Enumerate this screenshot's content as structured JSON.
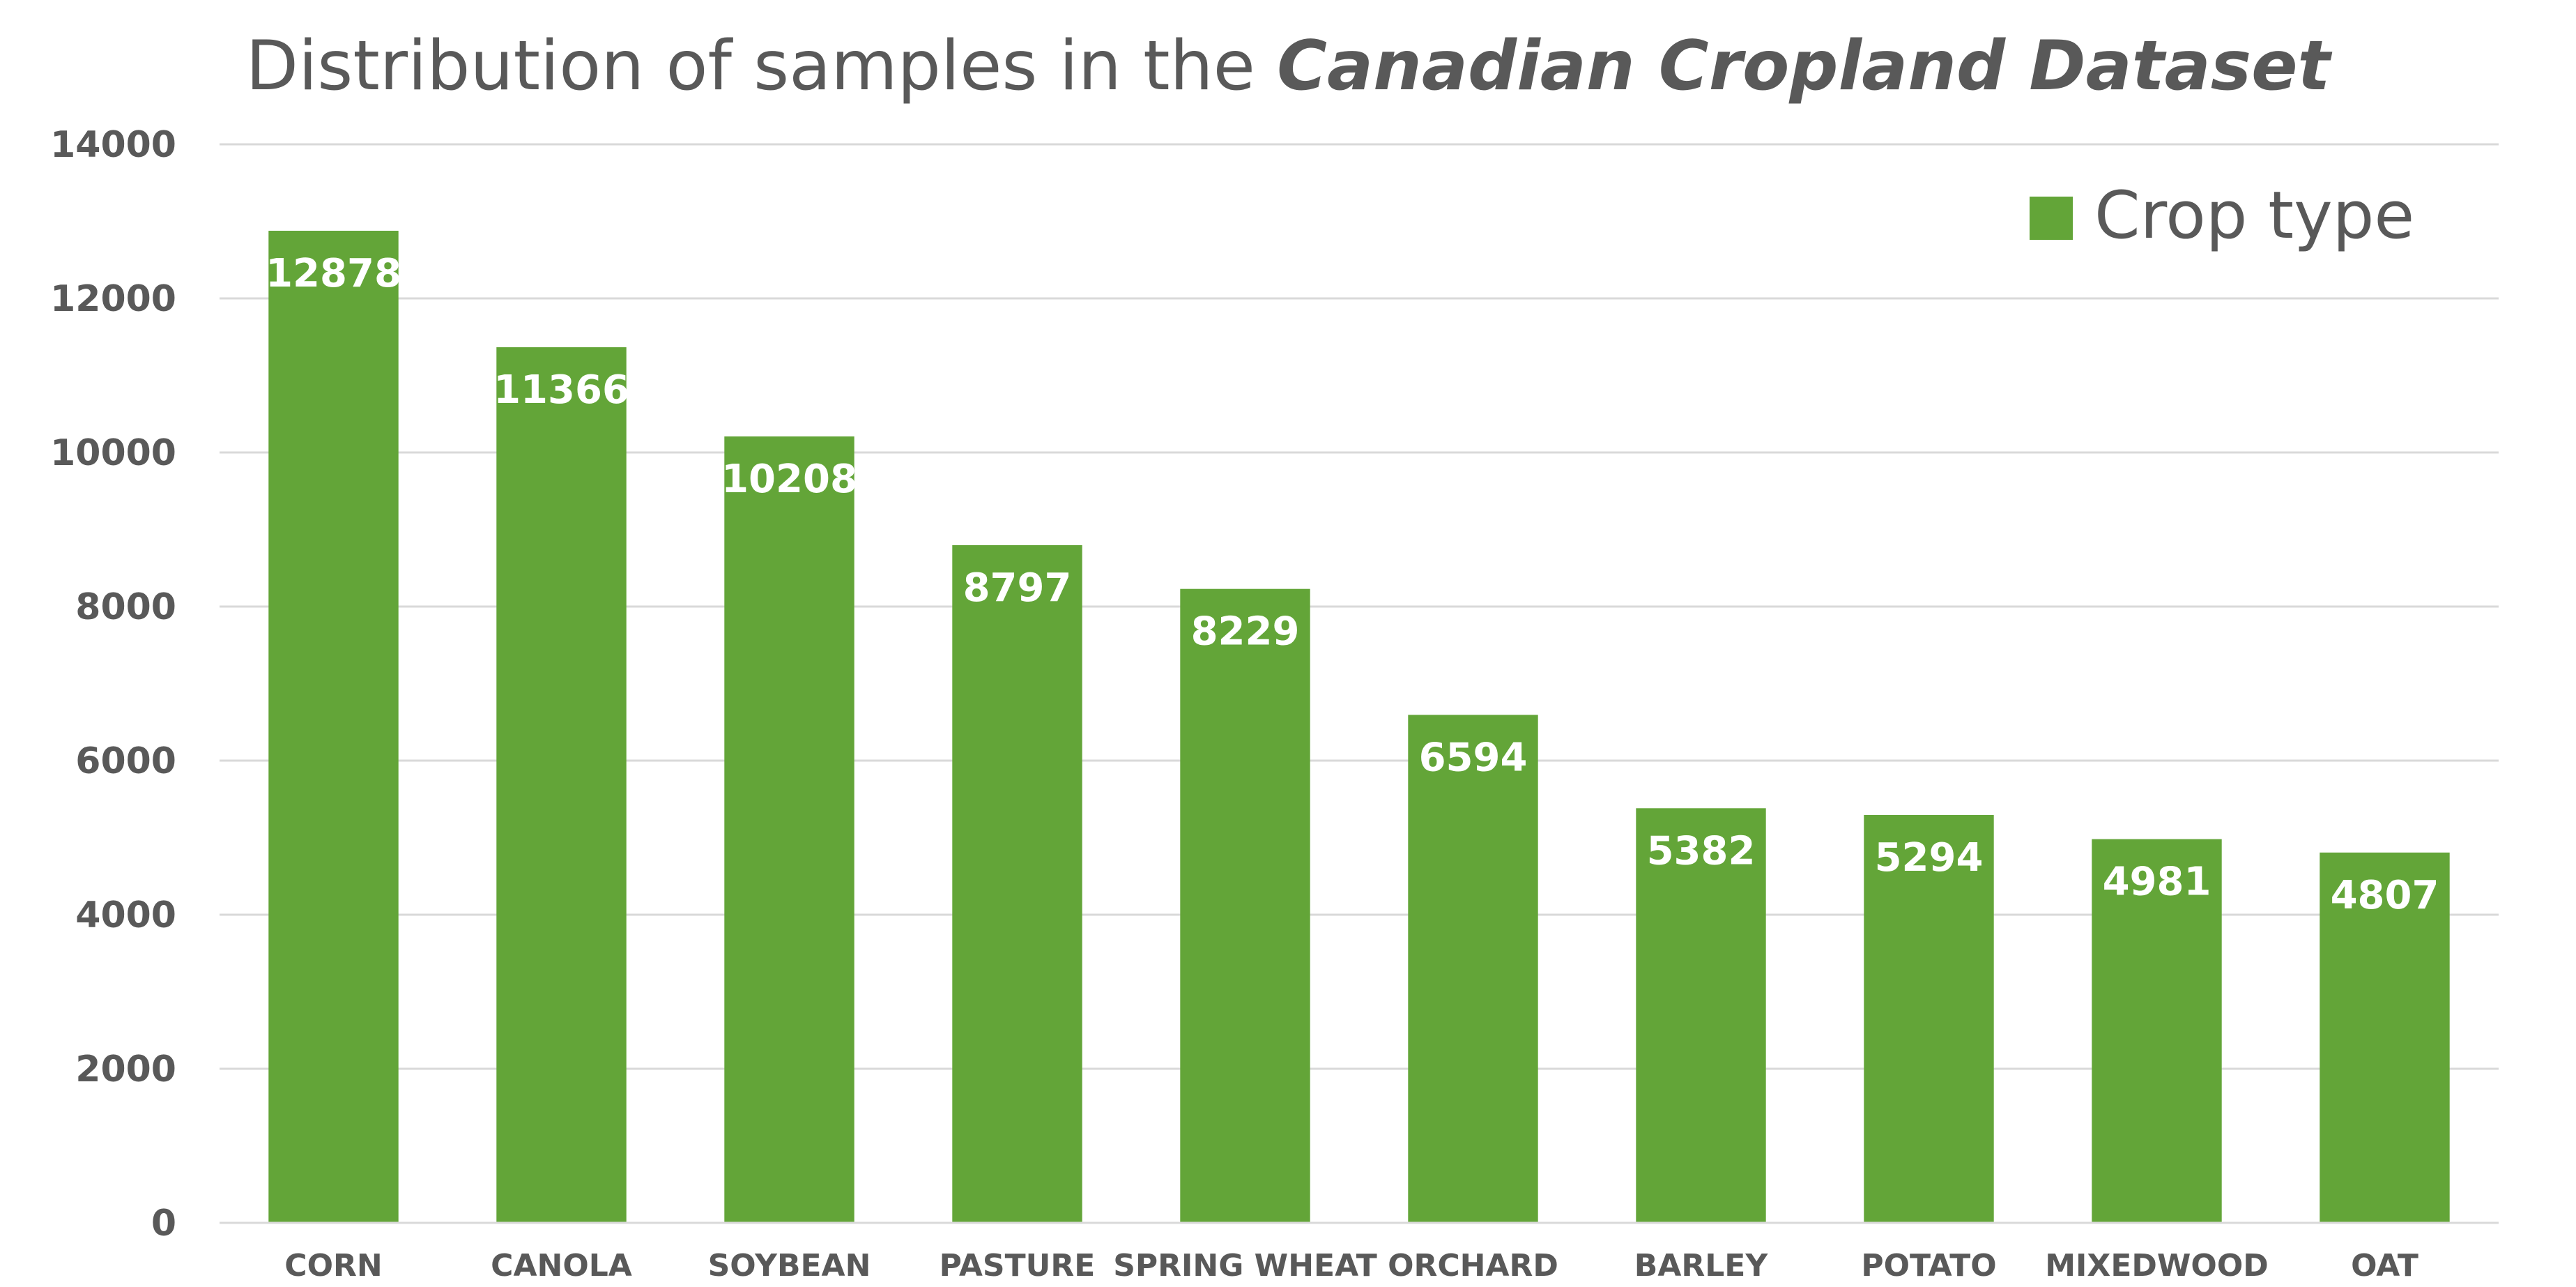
{
  "chart_data": {
    "type": "bar",
    "title_prefix": "Distribution of samples in the ",
    "title_emphasis": "Canadian Cropland Dataset",
    "categories": [
      "CORN",
      "CANOLA",
      "SOYBEAN",
      "PASTURE",
      "SPRING WHEAT",
      "ORCHARD",
      "BARLEY",
      "POTATO",
      "MIXEDWOOD",
      "OAT"
    ],
    "series": [
      {
        "name": "Crop type",
        "values": [
          12878,
          11366,
          10208,
          8797,
          8229,
          6594,
          5382,
          5294,
          4981,
          4807
        ],
        "color": "#63A538"
      }
    ],
    "xlabel": "",
    "ylabel": "",
    "ylim": [
      0,
      14000
    ],
    "yticks": [
      0,
      2000,
      4000,
      6000,
      8000,
      10000,
      12000,
      14000
    ],
    "grid": true,
    "legend": "top-right",
    "data_labels": "inside-end",
    "colors": {
      "bar": "#63A538",
      "grid": "#D9D9D9",
      "axis_text": "#595959",
      "label_text": "#FFFFFF"
    }
  }
}
